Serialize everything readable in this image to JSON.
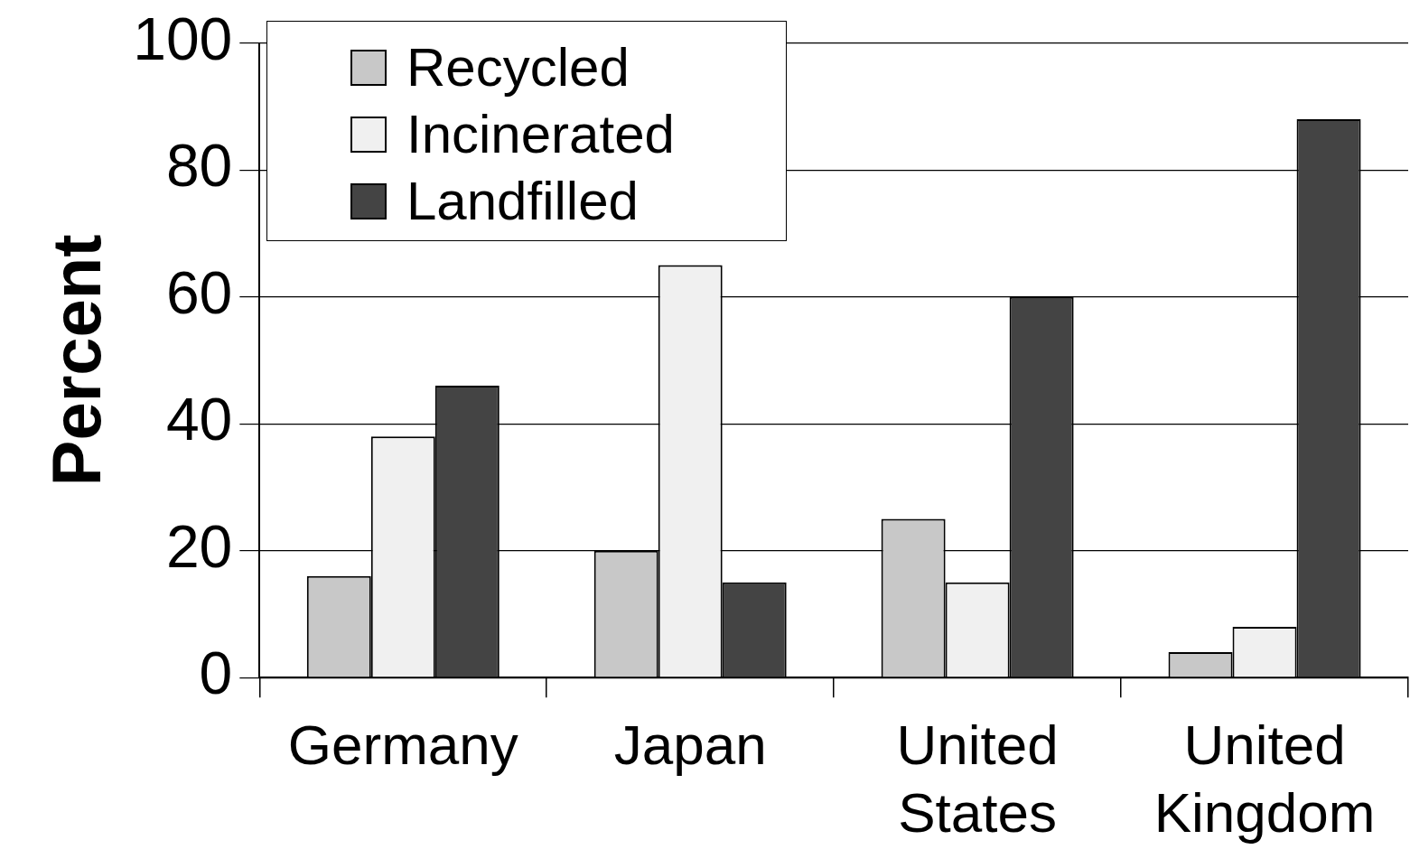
{
  "chart_data": {
    "type": "bar",
    "ylabel": "Percent",
    "categories": [
      "Germany",
      "Japan",
      "United States",
      "United Kingdom"
    ],
    "series": [
      {
        "name": "Recycled",
        "color": "#c8c8c8",
        "values": [
          16,
          20,
          25,
          4
        ]
      },
      {
        "name": "Incinerated",
        "color": "#f0f0f0",
        "values": [
          38,
          65,
          15,
          8
        ]
      },
      {
        "name": "Landfilled",
        "color": "#444444",
        "values": [
          46,
          15,
          60,
          88
        ]
      }
    ],
    "ylim": [
      0,
      100
    ],
    "yticks": [
      0,
      20,
      40,
      60,
      80,
      100
    ],
    "grid": "y",
    "legend": "top left"
  }
}
